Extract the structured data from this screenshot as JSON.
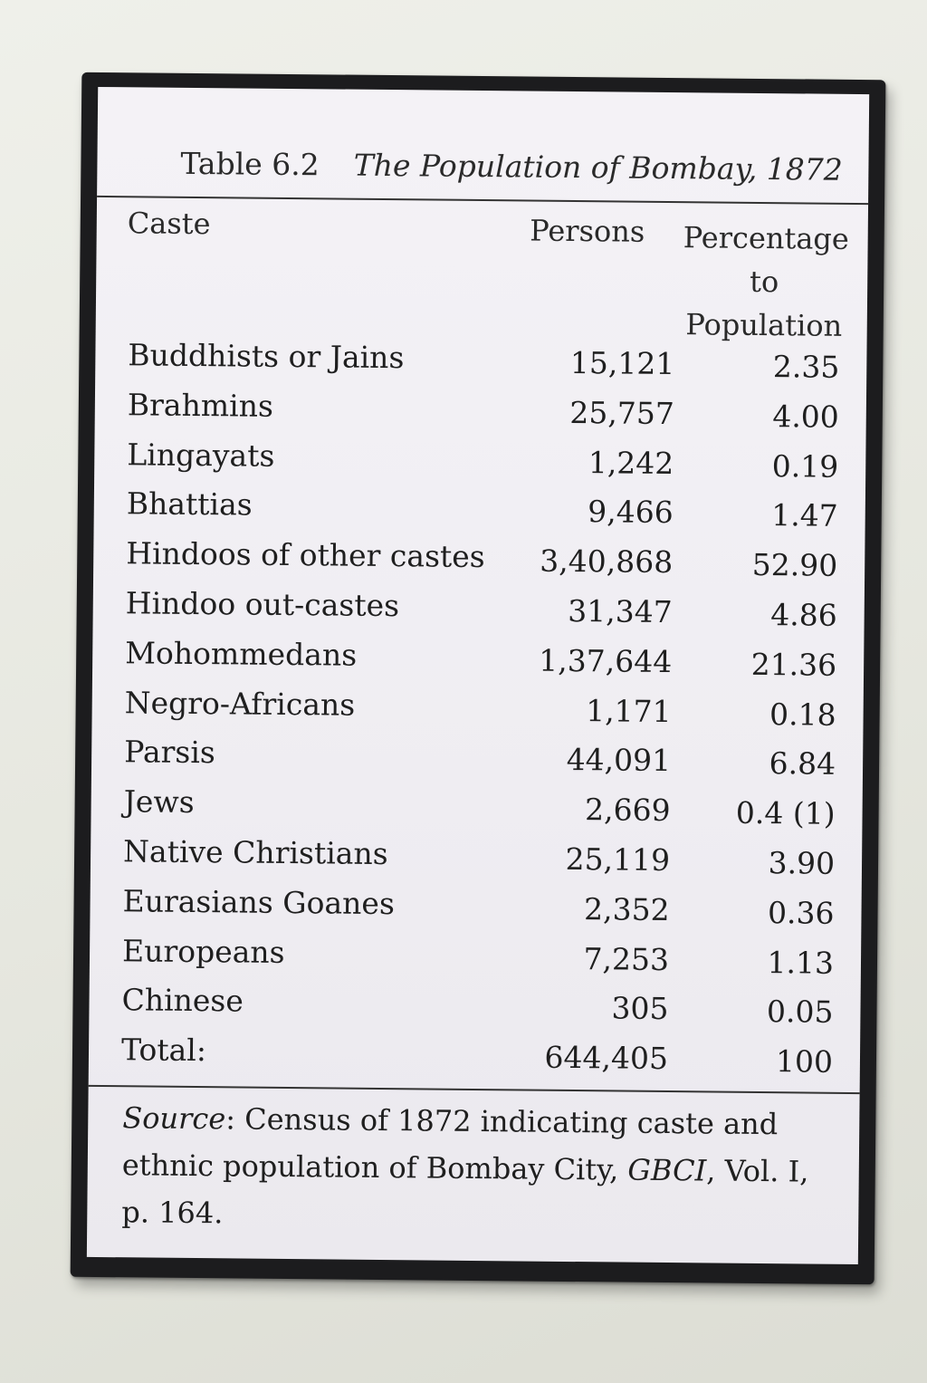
{
  "table": {
    "number": "Table 6.2",
    "title": "The Population of Bombay, 1872",
    "headers": {
      "caste": "Caste",
      "persons": "Persons",
      "percentage_line1": "Percentage",
      "percentage_line2": "to",
      "percentage_line3": "Population"
    },
    "rows": [
      {
        "caste": "Buddhists or Jains",
        "persons": "15,121",
        "percentage": "2.35"
      },
      {
        "caste": "Brahmins",
        "persons": "25,757",
        "percentage": "4.00"
      },
      {
        "caste": "Lingayats",
        "persons": "1,242",
        "percentage": "0.19"
      },
      {
        "caste": "Bhattias",
        "persons": "9,466",
        "percentage": "1.47"
      },
      {
        "caste": "Hindoos of other castes",
        "persons": "3,40,868",
        "percentage": "52.90"
      },
      {
        "caste": "Hindoo out-castes",
        "persons": "31,347",
        "percentage": "4.86"
      },
      {
        "caste": "Mohommedans",
        "persons": "1,37,644",
        "percentage": "21.36"
      },
      {
        "caste": "Negro-Africans",
        "persons": "1,171",
        "percentage": "0.18"
      },
      {
        "caste": "Parsis",
        "persons": "44,091",
        "percentage": "6.84"
      },
      {
        "caste": "Jews",
        "persons": "2,669",
        "percentage": "0.4 (1)"
      },
      {
        "caste": "Native Christians",
        "persons": "25,119",
        "percentage": "3.90"
      },
      {
        "caste": "Eurasians Goanes",
        "persons": "2,352",
        "percentage": "0.36"
      },
      {
        "caste": "Europeans",
        "persons": "7,253",
        "percentage": "1.13"
      },
      {
        "caste": "Chinese",
        "persons": "305",
        "percentage": "0.05"
      },
      {
        "caste": "Total:",
        "persons": "644,405",
        "percentage": "100"
      }
    ],
    "source": {
      "label": "Source",
      "colon": ": ",
      "text1": "Census of 1872 indicating caste and ethnic population of Bombay City, ",
      "italic_ref": "GBCI",
      "text2": ", Vol. I, p. 164."
    }
  }
}
